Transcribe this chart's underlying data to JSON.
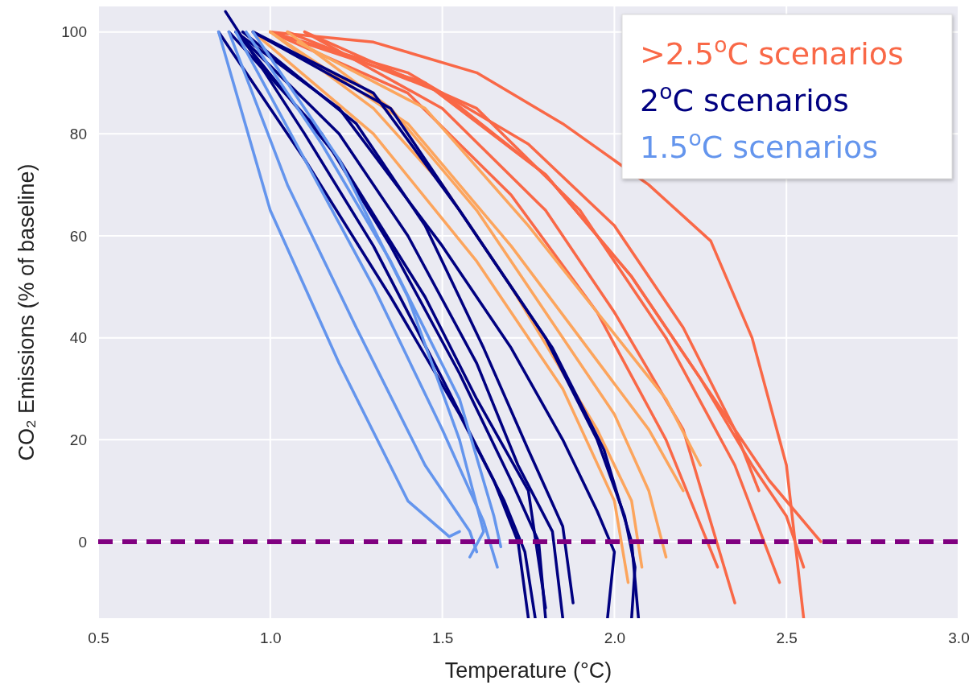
{
  "chart_data": {
    "type": "line",
    "xlabel": "Temperature (°C)",
    "ylabel": "CO₂ Emissions (% of baseline)",
    "xlim": [
      0.5,
      3.0
    ],
    "xticks": [
      {
        "value": 0.5,
        "label": "0.5"
      },
      {
        "value": 1.0,
        "label": "1.0"
      },
      {
        "value": 1.5,
        "label": "1.5"
      },
      {
        "value": 2.0,
        "label": "2.0"
      },
      {
        "value": 2.5,
        "label": "2.5"
      },
      {
        "value": 3.0,
        "label": "3.0"
      }
    ],
    "ylim": [
      -15,
      105
    ],
    "yticks": [
      0,
      20,
      40,
      60,
      80,
      100
    ],
    "grid": true,
    "legend": "top right",
    "marker": "none",
    "line_style": "solid",
    "ref_lines": [
      {
        "axis": "y",
        "value": 0,
        "color": "#800080",
        "line_style": "dashed"
      }
    ],
    "series": [
      {
        "name": ">2.5$^{o}$C scenarios",
        "color": "#f96847",
        "x": [
          1.0,
          1.3,
          1.6,
          1.85,
          2.1,
          2.28,
          2.4,
          2.5,
          2.55
        ],
        "values": [
          100,
          98,
          92,
          82,
          70,
          59,
          40,
          15,
          -15
        ]
      },
      {
        "color": "#f96847",
        "x": [
          1.0,
          1.4,
          1.75,
          2.0,
          2.2,
          2.35,
          2.42
        ],
        "values": [
          100,
          92,
          78,
          62,
          42,
          22,
          10
        ]
      },
      {
        "color": "#f96847",
        "x": [
          1.05,
          1.5,
          1.8,
          2.05,
          2.25,
          2.4,
          2.5,
          2.55
        ],
        "values": [
          100,
          88,
          72,
          52,
          32,
          15,
          5,
          -5
        ]
      },
      {
        "color": "#f96847",
        "x": [
          1.0,
          1.45,
          1.8,
          2.05,
          2.25,
          2.45,
          2.6
        ],
        "values": [
          100,
          90,
          72,
          52,
          32,
          12,
          0
        ]
      },
      {
        "color": "#f96847",
        "x": [
          1.1,
          1.5,
          1.8,
          2.0,
          2.2,
          2.35
        ],
        "values": [
          100,
          85,
          65,
          45,
          22,
          -12
        ]
      },
      {
        "color": "#f96847",
        "x": [
          1.0,
          1.4,
          1.7,
          1.95,
          2.15,
          2.3
        ],
        "values": [
          100,
          88,
          68,
          45,
          20,
          -5
        ]
      },
      {
        "color": "#f96847",
        "x": [
          1.1,
          1.6,
          1.9,
          2.15,
          2.35,
          2.48
        ],
        "values": [
          100,
          85,
          65,
          40,
          15,
          -8
        ]
      },
      {
        "color": "#fca55d",
        "x": [
          1.0,
          1.3,
          1.5,
          1.7,
          1.95,
          2.05,
          2.08
        ],
        "values": [
          100,
          85,
          70,
          50,
          22,
          8,
          -5
        ]
      },
      {
        "color": "#fca55d",
        "x": [
          1.05,
          1.35,
          1.6,
          1.8,
          2.0,
          2.1,
          2.15
        ],
        "values": [
          100,
          85,
          65,
          45,
          25,
          10,
          -3
        ]
      },
      {
        "color": "#fca55d",
        "x": [
          1.0,
          1.4,
          1.7,
          1.9,
          2.1,
          2.2
        ],
        "values": [
          100,
          82,
          58,
          40,
          22,
          10
        ]
      },
      {
        "color": "#fca55d",
        "x": [
          1.08,
          1.45,
          1.75,
          1.95,
          2.15,
          2.25
        ],
        "values": [
          98,
          85,
          62,
          45,
          28,
          15
        ]
      },
      {
        "color": "#fca55d",
        "x": [
          0.95,
          1.3,
          1.6,
          1.85,
          2.0,
          2.04
        ],
        "values": [
          100,
          80,
          55,
          30,
          8,
          -8
        ]
      },
      {
        "name": "2$^{o}$C scenarios",
        "color": "#000080",
        "x": [
          0.87,
          1.1,
          1.3,
          1.5,
          1.65,
          1.72,
          1.75
        ],
        "values": [
          104,
          80,
          58,
          32,
          12,
          0,
          -15
        ]
      },
      {
        "color": "#000080",
        "x": [
          0.88,
          1.15,
          1.35,
          1.55,
          1.7,
          1.78,
          1.8
        ],
        "values": [
          100,
          80,
          58,
          33,
          12,
          0,
          -15
        ]
      },
      {
        "color": "#000080",
        "x": [
          0.9,
          1.2,
          1.4,
          1.6,
          1.72,
          1.82,
          1.85
        ],
        "values": [
          100,
          80,
          60,
          35,
          15,
          2,
          -15
        ]
      },
      {
        "color": "#000080",
        "x": [
          0.92,
          1.25,
          1.45,
          1.62,
          1.75,
          1.85,
          1.88
        ],
        "values": [
          100,
          82,
          62,
          38,
          18,
          3,
          -12
        ]
      },
      {
        "color": "#000080",
        "x": [
          0.85,
          1.1,
          1.35,
          1.55,
          1.68,
          1.74,
          1.77
        ],
        "values": [
          100,
          75,
          48,
          25,
          8,
          -2,
          -15
        ]
      },
      {
        "color": "#000080",
        "x": [
          0.9,
          1.2,
          1.5,
          1.7,
          1.85,
          1.95,
          2.0,
          1.98
        ],
        "values": [
          100,
          85,
          58,
          38,
          20,
          6,
          -2,
          -15
        ]
      },
      {
        "color": "#000080",
        "x": [
          0.95,
          1.3,
          1.55,
          1.8,
          1.95,
          2.03,
          2.06,
          2.05
        ],
        "values": [
          100,
          88,
          65,
          40,
          20,
          5,
          -5,
          -15
        ]
      },
      {
        "color": "#000080",
        "x": [
          0.95,
          1.35,
          1.6,
          1.82,
          1.97,
          2.05,
          2.07
        ],
        "values": [
          100,
          85,
          60,
          38,
          18,
          0,
          -15
        ]
      },
      {
        "color": "#000080",
        "x": [
          0.9,
          1.2,
          1.45,
          1.6,
          1.75,
          1.8
        ],
        "values": [
          100,
          75,
          48,
          28,
          10,
          -13
        ]
      },
      {
        "name": "1.5$^{o}$C scenarios",
        "color": "#6495ed",
        "x": [
          0.85,
          1.0,
          1.2,
          1.4,
          1.52,
          1.55
        ],
        "values": [
          100,
          65,
          35,
          8,
          1,
          2
        ]
      },
      {
        "color": "#6495ed",
        "x": [
          0.88,
          1.05,
          1.25,
          1.45,
          1.58,
          1.6
        ],
        "values": [
          100,
          70,
          42,
          15,
          2,
          -2
        ]
      },
      {
        "color": "#6495ed",
        "x": [
          0.9,
          1.1,
          1.3,
          1.5,
          1.62,
          1.66
        ],
        "values": [
          100,
          75,
          50,
          22,
          4,
          -5
        ]
      },
      {
        "color": "#6495ed",
        "x": [
          0.93,
          1.15,
          1.35,
          1.55,
          1.65,
          1.67
        ],
        "values": [
          100,
          78,
          55,
          28,
          5,
          -1
        ]
      },
      {
        "color": "#6495ed",
        "x": [
          0.95,
          1.2,
          1.4,
          1.55,
          1.62,
          1.58
        ],
        "values": [
          100,
          75,
          48,
          20,
          2,
          -3
        ]
      }
    ]
  }
}
